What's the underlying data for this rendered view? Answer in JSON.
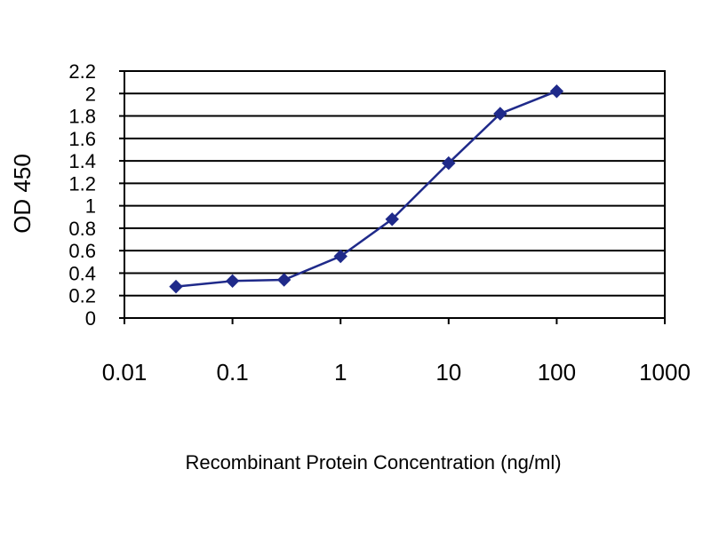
{
  "chart_data": {
    "type": "line",
    "xlabel": "Recombinant Protein Concentration (ng/ml)",
    "ylabel": "OD 450",
    "x_scale": "log",
    "xlim": [
      0.01,
      1000
    ],
    "ylim": [
      0,
      2.2
    ],
    "x_ticks": [
      "0.01",
      "0.1",
      "1",
      "10",
      "100",
      "1000"
    ],
    "y_ticks": [
      "0",
      "0.2",
      "0.4",
      "0.6",
      "0.8",
      "1",
      "1.2",
      "1.4",
      "1.6",
      "1.8",
      "2",
      "2.2"
    ],
    "grid": true,
    "legend": false,
    "series": [
      {
        "color": "#1f2a8a",
        "x": [
          0.03,
          0.1,
          0.3,
          1,
          3,
          10,
          30,
          100
        ],
        "y": [
          0.28,
          0.33,
          0.34,
          0.55,
          0.88,
          1.38,
          1.82,
          2.02
        ]
      }
    ]
  }
}
